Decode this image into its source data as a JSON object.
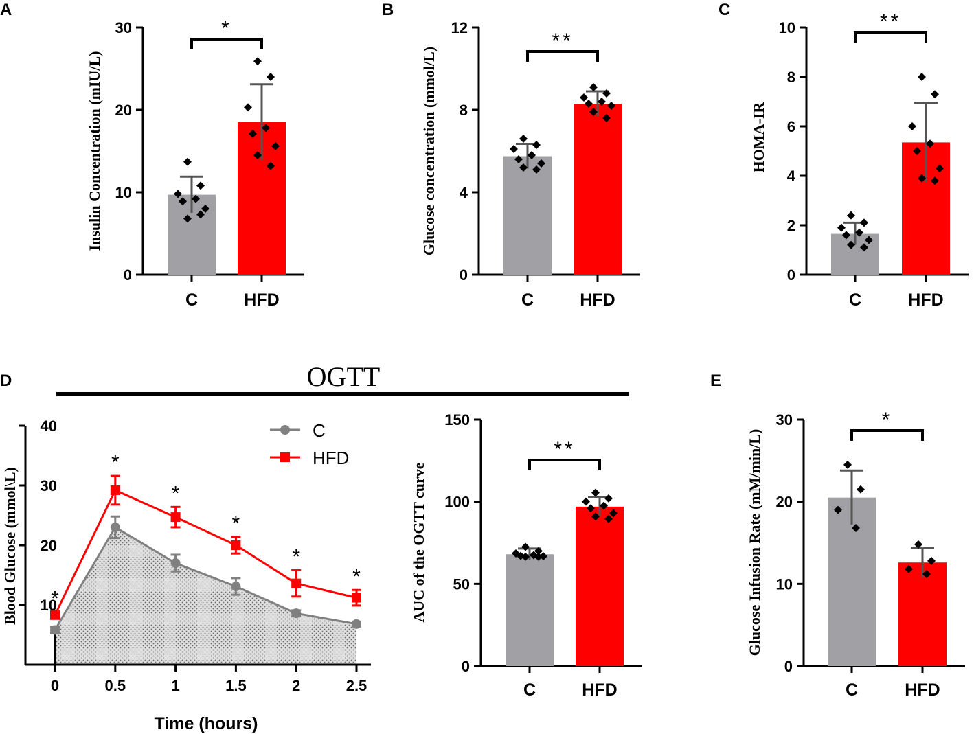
{
  "colors": {
    "control": "#a0a0a5",
    "hfd": "#ff0000",
    "line_control": "#808080",
    "line_hfd": "#ff0000",
    "text": "#000000"
  },
  "chart_data": [
    {
      "id": "A",
      "panel_label": "A",
      "type": "bar",
      "ylabel": "Insulin Concentration (mIU/L)",
      "categories": [
        "C",
        "HFD"
      ],
      "values": [
        9.7,
        18.5
      ],
      "sd": [
        2.2,
        4.6
      ],
      "ylim": [
        0,
        30
      ],
      "yticks": [
        0,
        10,
        20,
        30
      ],
      "ytick_labels": [
        "0",
        "10",
        "20",
        "30"
      ],
      "points": [
        [
          13.7,
          10.8,
          9.8,
          9.2,
          8.9,
          8.0,
          6.8,
          7.3
        ],
        [
          25.9,
          24.0,
          20.3,
          17.8,
          17.1,
          15.6,
          14.5,
          13.2
        ]
      ],
      "significance": "*"
    },
    {
      "id": "B",
      "panel_label": "B",
      "type": "bar",
      "ylabel": "Glucose concentration (mmol/L)",
      "categories": [
        "C",
        "HFD"
      ],
      "values": [
        5.75,
        8.3
      ],
      "sd": [
        0.6,
        0.6
      ],
      "ylim": [
        0,
        12
      ],
      "yticks": [
        0,
        4,
        8,
        12
      ],
      "ytick_labels": [
        "0",
        "4",
        "8",
        "12"
      ],
      "points": [
        [
          6.6,
          6.3,
          6.1,
          5.8,
          5.6,
          5.4,
          5.2,
          5.1
        ],
        [
          9.1,
          8.8,
          8.6,
          8.4,
          8.3,
          8.2,
          7.9,
          7.6
        ]
      ],
      "significance": "**"
    },
    {
      "id": "C",
      "panel_label": "C",
      "type": "bar",
      "ylabel": "HOMA-IR",
      "categories": [
        "C",
        "HFD"
      ],
      "values": [
        1.65,
        5.35
      ],
      "sd": [
        0.45,
        1.6
      ],
      "ylim": [
        0,
        10
      ],
      "yticks": [
        0,
        2,
        4,
        6,
        8,
        10
      ],
      "ytick_labels": [
        "0",
        "2",
        "4",
        "6",
        "8",
        "10"
      ],
      "points": [
        [
          2.4,
          2.1,
          1.9,
          1.7,
          1.6,
          1.4,
          1.2,
          1.1
        ],
        [
          8.0,
          7.3,
          6.0,
          5.3,
          5.0,
          4.3,
          3.9,
          3.8
        ]
      ],
      "significance": "**"
    },
    {
      "id": "D-line",
      "panel_label": "D",
      "type": "line",
      "title": "OGTT",
      "xlabel": "Time (hours)",
      "ylabel": "Blood Glucose (mmol\\L)",
      "x": [
        0,
        0.5,
        1,
        1.5,
        2,
        2.5
      ],
      "xtick_labels": [
        "0",
        "0.5",
        "1",
        "1.5",
        "2",
        "2.5"
      ],
      "ylim": [
        0,
        40
      ],
      "yticks": [
        10,
        20,
        30,
        40
      ],
      "ytick_labels": [
        "10",
        "20",
        "30",
        "40"
      ],
      "series": [
        {
          "name": "C",
          "values": [
            5.8,
            23.0,
            17.0,
            13.1,
            8.6,
            6.8
          ],
          "err": [
            0.5,
            1.8,
            1.4,
            1.4,
            0.5,
            0.4
          ],
          "marker": "circle",
          "shaded_area": true
        },
        {
          "name": "HFD",
          "values": [
            8.3,
            29.2,
            24.7,
            20.0,
            13.6,
            11.2
          ],
          "err": [
            0.5,
            2.4,
            1.7,
            1.4,
            2.2,
            1.3
          ],
          "marker": "square"
        }
      ],
      "significance_labels": [
        "*",
        "*",
        "*",
        "*",
        "*",
        "*"
      ],
      "legend_position": "top-right"
    },
    {
      "id": "D-auc",
      "type": "bar",
      "ylabel": "AUC of the OGTT curve",
      "categories": [
        "C",
        "HFD"
      ],
      "values": [
        68,
        97
      ],
      "sd": [
        3.5,
        6
      ],
      "ylim": [
        0,
        150
      ],
      "yticks": [
        0,
        50,
        100,
        150
      ],
      "ytick_labels": [
        "0",
        "50",
        "100",
        "150"
      ],
      "points": [
        [
          72.5,
          70.0,
          68.5,
          67.5,
          67.0,
          66.8,
          66.5,
          66.5
        ],
        [
          105.5,
          102.0,
          100.0,
          97.5,
          96.0,
          93.0,
          91.0,
          89.5
        ]
      ],
      "significance": "**"
    },
    {
      "id": "E",
      "panel_label": "E",
      "type": "bar",
      "ylabel": "Glucose Infusion Rate (mM/min/L)",
      "categories": [
        "C",
        "HFD"
      ],
      "values": [
        20.5,
        12.6
      ],
      "sd": [
        3.3,
        1.8
      ],
      "ylim": [
        0,
        30
      ],
      "yticks": [
        0,
        10,
        20,
        30
      ],
      "ytick_labels": [
        "0",
        "10",
        "20",
        "30"
      ],
      "points": [
        [
          24.5,
          21.5,
          19.0,
          16.8
        ],
        [
          14.8,
          12.8,
          11.8,
          11.2
        ]
      ],
      "significance": "*"
    }
  ]
}
